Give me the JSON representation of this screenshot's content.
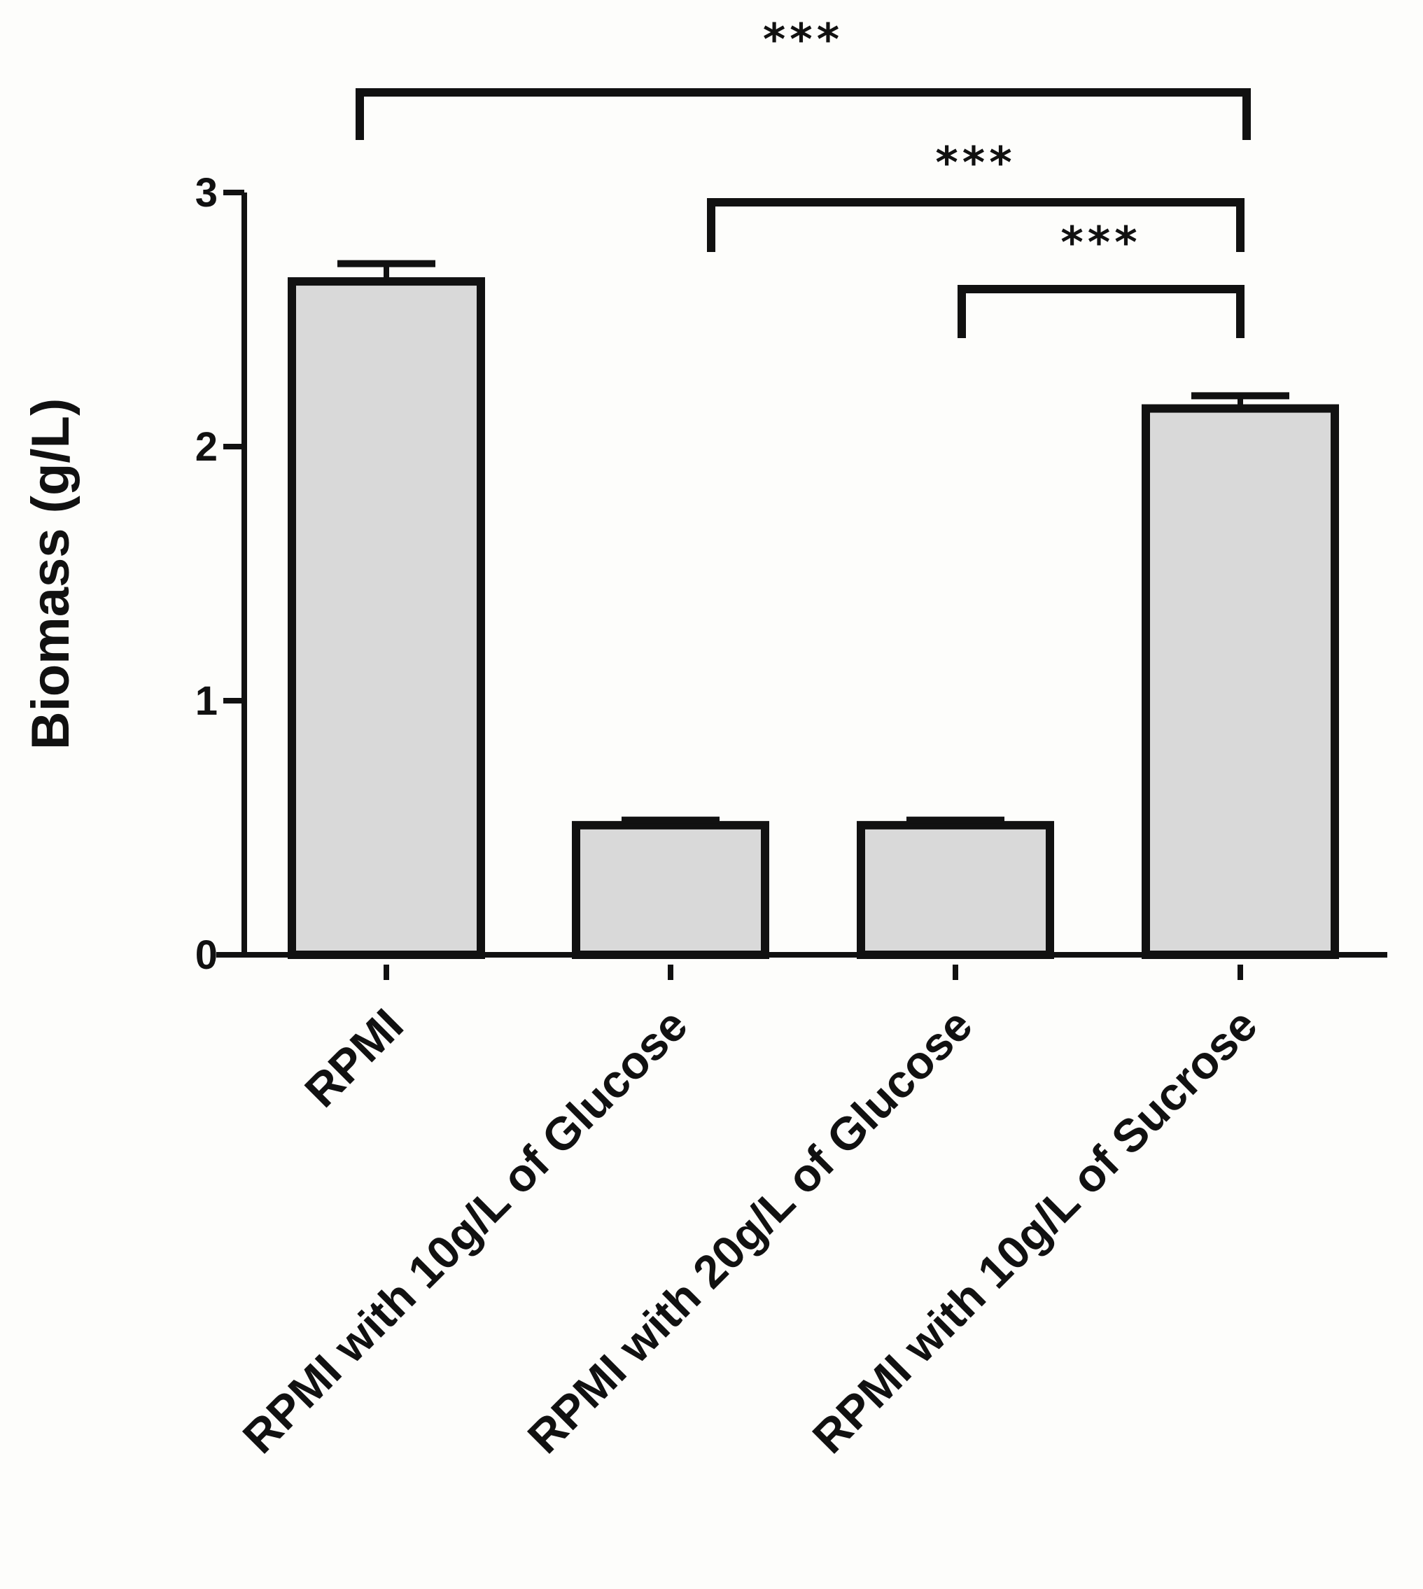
{
  "chart_data": {
    "type": "bar",
    "categories": [
      "RPMI",
      "RPMI with 10g/L of Glucose",
      "RPMI with 20g/L of Glucose",
      "RPMI with 10g/L of Sucrose"
    ],
    "values": [
      2.65,
      0.51,
      0.51,
      2.15
    ],
    "errors": [
      0.07,
      0.02,
      0.02,
      0.05
    ],
    "xlabel": "",
    "ylabel": "Biomass (g/L)",
    "ylim": [
      0,
      3
    ],
    "yticks": [
      "0",
      "1",
      "2",
      "3"
    ],
    "grid": false,
    "bar_color": "#d9d9d9",
    "significance": [
      {
        "from": 0,
        "to": 3,
        "label": "***"
      },
      {
        "from": 1,
        "to": 3,
        "label": "***"
      },
      {
        "from": 2,
        "to": 3,
        "label": "***"
      }
    ]
  }
}
